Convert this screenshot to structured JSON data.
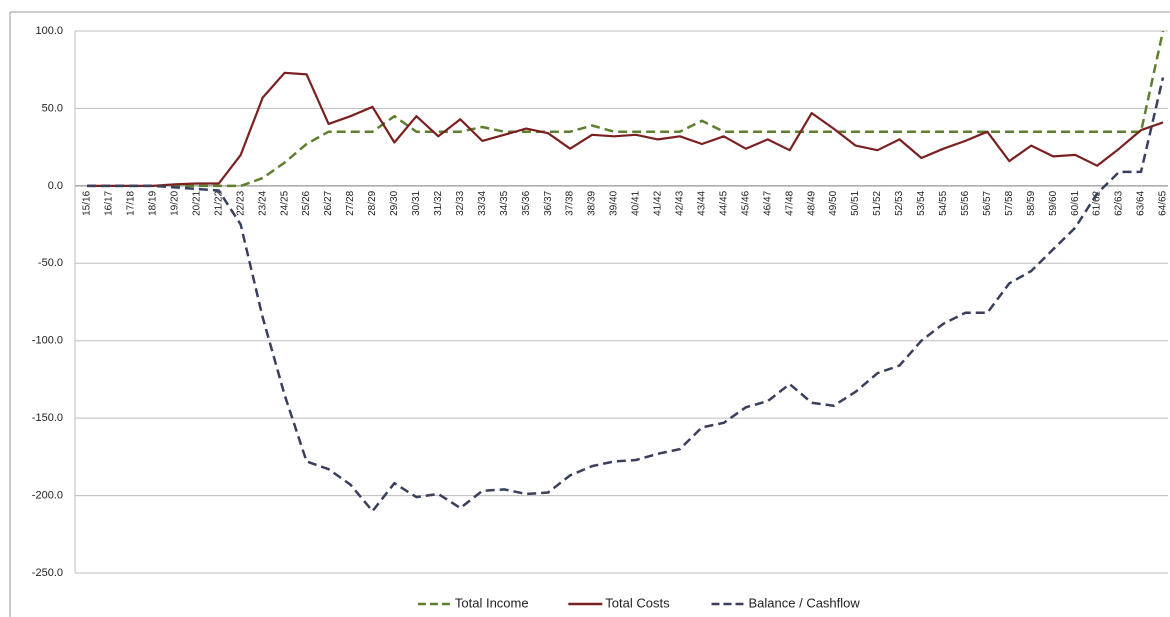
{
  "chart_data": {
    "type": "line",
    "categories": [
      "15/16",
      "16/17",
      "17/18",
      "18/19",
      "19/20",
      "20/21",
      "21/22",
      "22/23",
      "23/24",
      "24/25",
      "25/26",
      "26/27",
      "27/28",
      "28/29",
      "29/30",
      "30/31",
      "31/32",
      "32/33",
      "33/34",
      "34/35",
      "35/36",
      "36/37",
      "37/38",
      "38/39",
      "39/40",
      "40/41",
      "41/42",
      "42/43",
      "43/44",
      "44/45",
      "45/46",
      "46/47",
      "47/48",
      "48/49",
      "49/50",
      "50/51",
      "51/52",
      "52/53",
      "53/54",
      "54/55",
      "55/56",
      "56/57",
      "57/58",
      "58/59",
      "59/60",
      "60/61",
      "61/62",
      "62/63",
      "63/64",
      "64/65"
    ],
    "series": [
      {
        "name": "Total Income",
        "color": "#5e7f2e",
        "dash": true,
        "values": [
          0,
          0,
          0,
          0,
          0,
          0,
          0,
          0,
          5,
          15,
          27,
          35,
          35,
          35,
          45,
          35,
          35,
          35,
          38,
          35,
          35,
          35,
          35,
          39,
          35,
          35,
          35,
          35,
          42,
          35,
          35,
          35,
          35,
          35,
          35,
          35,
          35,
          35,
          35,
          35,
          35,
          35,
          35,
          35,
          35,
          35,
          35,
          35,
          35,
          100
        ]
      },
      {
        "name": "Total Costs",
        "color": "#7a2020",
        "dash": false,
        "values": [
          0,
          0,
          0,
          0,
          1,
          1.5,
          1.5,
          20,
          57,
          73,
          72,
          40,
          45,
          51,
          28,
          45,
          32,
          43,
          29,
          33,
          37,
          34,
          24,
          33,
          32,
          33,
          30,
          32,
          27,
          32,
          24,
          30,
          23,
          47,
          37,
          26,
          23,
          30,
          18,
          24,
          29,
          35,
          16,
          26,
          19,
          20,
          13,
          24,
          36,
          41
        ]
      },
      {
        "name": "Balance / Cashflow",
        "color": "#3a3f5e",
        "dash": true,
        "values": [
          0,
          0,
          0,
          0,
          -1,
          -2,
          -3,
          -25,
          -85,
          -135,
          -178,
          -183,
          -193,
          -210,
          -192,
          -201,
          -199,
          -208,
          -197,
          -196,
          -199,
          -198,
          -187,
          -181,
          -178,
          -177,
          -173,
          -170,
          -156,
          -153,
          -143,
          -139,
          -128,
          -140,
          -142,
          -133,
          -121,
          -116,
          -100,
          -89,
          -82,
          -82,
          -63,
          -55,
          -41,
          -27,
          -5,
          9,
          9,
          70
        ]
      }
    ],
    "ylim": [
      -250,
      100
    ],
    "yticks": [
      {
        "value": -250,
        "label": "-250.0"
      },
      {
        "value": -200,
        "label": "-200.0"
      },
      {
        "value": -150,
        "label": "-150.0"
      },
      {
        "value": -100,
        "label": "-100.0"
      },
      {
        "value": -50,
        "label": "-50.0"
      },
      {
        "value": 0,
        "label": "0.0"
      },
      {
        "value": 50,
        "label": "50.0"
      },
      {
        "value": 100,
        "label": "100.0"
      }
    ],
    "grid": true,
    "legend": "bottom"
  }
}
